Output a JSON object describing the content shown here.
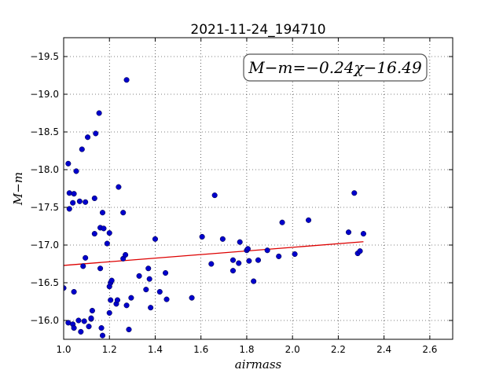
{
  "chart_data": {
    "type": "scatter",
    "title": "2021-11-24_194710",
    "xlabel": "airmass",
    "ylabel": "M−m",
    "xlim": [
      1.0,
      2.7
    ],
    "ylim": [
      -19.75,
      -15.75
    ],
    "y_inverted": true,
    "grid": true,
    "x_ticks": [
      1.0,
      1.2,
      1.4,
      1.6,
      1.8,
      2.0,
      2.2,
      2.4,
      2.6
    ],
    "x_tick_labels": [
      "1.0",
      "1.2",
      "1.4",
      "1.6",
      "1.8",
      "2.0",
      "2.2",
      "2.4",
      "2.6"
    ],
    "y_ticks": [
      -16.0,
      -16.5,
      -17.0,
      -17.5,
      -18.0,
      -18.5,
      -19.0,
      -19.5
    ],
    "y_tick_labels": [
      "−16.0",
      "−16.5",
      "−17.0",
      "−17.5",
      "−18.0",
      "−18.5",
      "−19.0",
      "−19.5"
    ],
    "annotation": "M−m=−0.24χ−16.49",
    "point_color": "#0000cc",
    "fit_color": "#dd0000",
    "fit_line": {
      "slope": -0.24,
      "intercept": -16.49,
      "x_range": [
        1.0,
        2.31
      ]
    },
    "points": [
      [
        1.0,
        -16.43
      ],
      [
        1.02,
        -15.97
      ],
      [
        1.04,
        -15.95
      ],
      [
        1.045,
        -15.9
      ],
      [
        1.045,
        -16.38
      ],
      [
        1.065,
        -16.0
      ],
      [
        1.075,
        -15.85
      ],
      [
        1.09,
        -15.99
      ],
      [
        1.11,
        -15.92
      ],
      [
        1.12,
        -16.02
      ],
      [
        1.12,
        -16.03
      ],
      [
        1.125,
        -16.13
      ],
      [
        1.155,
        -15.72
      ],
      [
        1.165,
        -15.9
      ],
      [
        1.17,
        -15.8
      ],
      [
        1.085,
        -16.72
      ],
      [
        1.095,
        -16.83
      ],
      [
        1.16,
        -16.69
      ],
      [
        1.2,
        -16.1
      ],
      [
        1.205,
        -16.27
      ],
      [
        1.2,
        -16.45
      ],
      [
        1.205,
        -16.5
      ],
      [
        1.21,
        -16.53
      ],
      [
        1.23,
        -16.22
      ],
      [
        1.235,
        -16.27
      ],
      [
        1.285,
        -15.88
      ],
      [
        1.275,
        -16.2
      ],
      [
        1.295,
        -16.3
      ],
      [
        1.33,
        -16.59
      ],
      [
        1.36,
        -16.41
      ],
      [
        1.37,
        -16.69
      ],
      [
        1.375,
        -16.55
      ],
      [
        1.38,
        -16.17
      ],
      [
        1.42,
        -16.38
      ],
      [
        1.445,
        -16.63
      ],
      [
        1.45,
        -16.28
      ],
      [
        1.56,
        -16.3
      ],
      [
        1.26,
        -16.82
      ],
      [
        1.27,
        -16.87
      ],
      [
        1.19,
        -17.02
      ],
      [
        1.4,
        -17.08
      ],
      [
        1.605,
        -17.11
      ],
      [
        1.645,
        -16.75
      ],
      [
        1.695,
        -17.08
      ],
      [
        1.74,
        -16.66
      ],
      [
        1.74,
        -16.8
      ],
      [
        1.765,
        -16.76
      ],
      [
        1.77,
        -17.04
      ],
      [
        1.8,
        -16.93
      ],
      [
        1.805,
        -16.95
      ],
      [
        1.81,
        -16.79
      ],
      [
        1.83,
        -16.52
      ],
      [
        1.85,
        -16.8
      ],
      [
        1.89,
        -16.93
      ],
      [
        1.94,
        -16.85
      ],
      [
        1.955,
        -17.3
      ],
      [
        2.01,
        -16.88
      ],
      [
        2.07,
        -17.33
      ],
      [
        2.245,
        -17.17
      ],
      [
        2.27,
        -17.69
      ],
      [
        2.285,
        -16.89
      ],
      [
        2.295,
        -16.92
      ],
      [
        2.31,
        -17.15
      ],
      [
        1.135,
        -17.15
      ],
      [
        1.16,
        -17.23
      ],
      [
        1.175,
        -17.22
      ],
      [
        1.2,
        -17.16
      ],
      [
        1.17,
        -17.43
      ],
      [
        1.26,
        -17.43
      ],
      [
        1.025,
        -17.48
      ],
      [
        1.04,
        -17.56
      ],
      [
        1.07,
        -17.58
      ],
      [
        1.095,
        -17.57
      ],
      [
        1.135,
        -17.62
      ],
      [
        1.025,
        -17.69
      ],
      [
        1.045,
        -17.68
      ],
      [
        1.24,
        -17.77
      ],
      [
        1.66,
        -17.66
      ],
      [
        1.055,
        -17.98
      ],
      [
        1.02,
        -18.08
      ],
      [
        1.08,
        -18.27
      ],
      [
        1.105,
        -18.43
      ],
      [
        1.14,
        -18.48
      ],
      [
        1.155,
        -18.75
      ],
      [
        1.275,
        -19.19
      ]
    ]
  }
}
